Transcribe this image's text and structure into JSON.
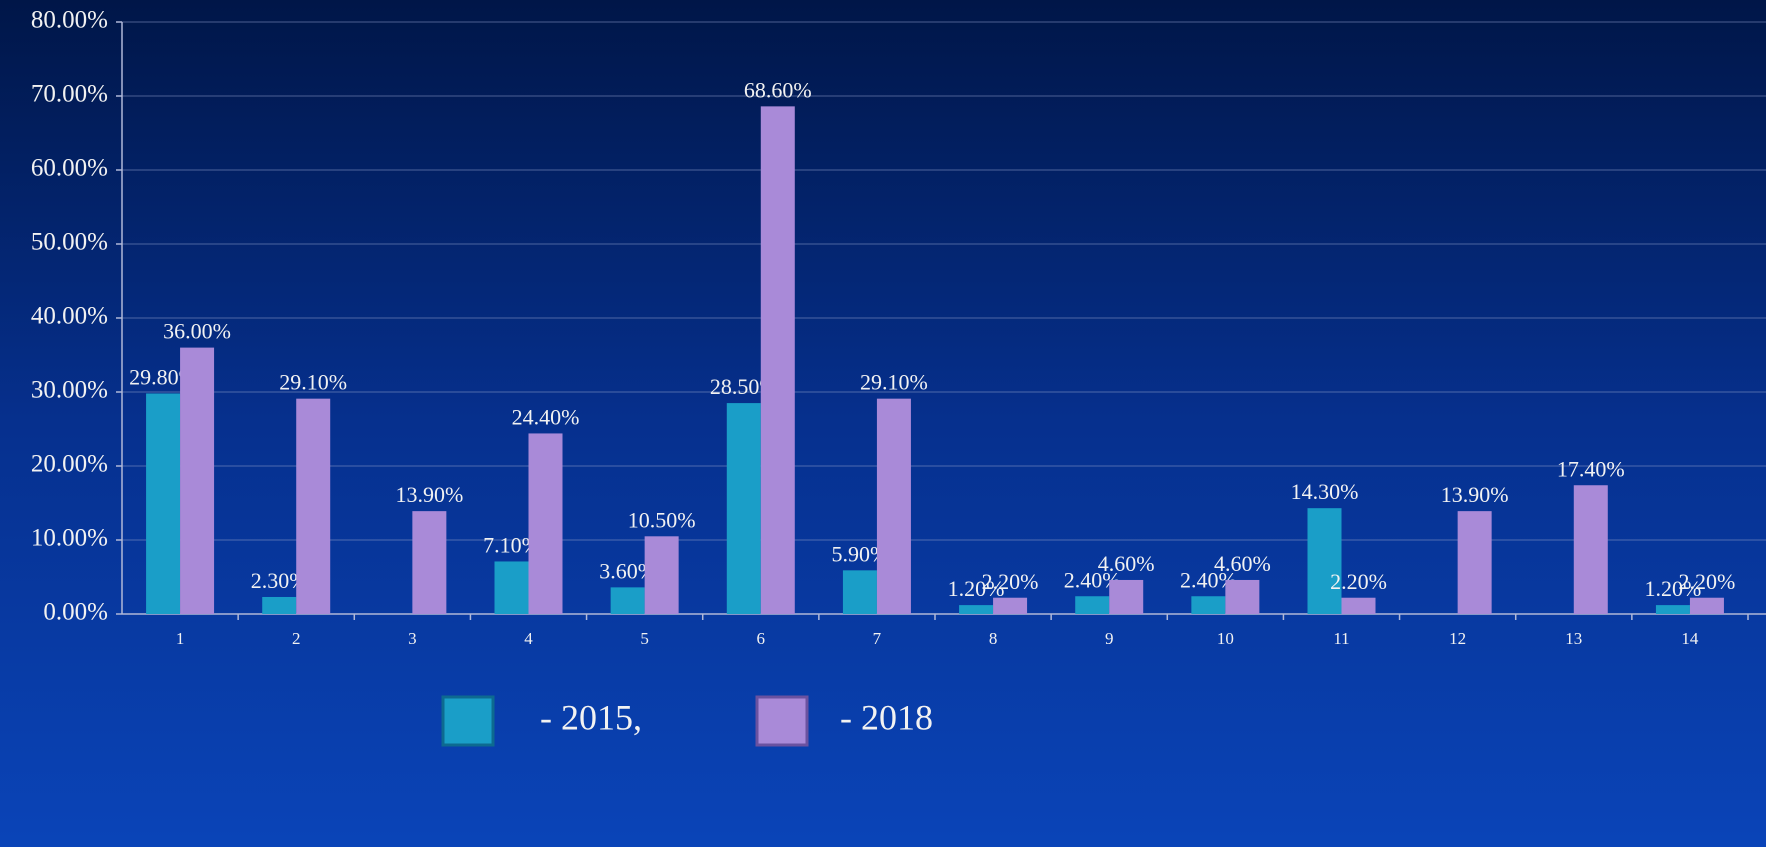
{
  "chart_data": {
    "type": "bar",
    "categories": [
      "1",
      "2",
      "3",
      "4",
      "5",
      "6",
      "7",
      "8",
      "9",
      "10",
      "11",
      "12",
      "13",
      "14"
    ],
    "series": [
      {
        "name": "- 2015,",
        "color": "#1a9ec8",
        "values": [
          29.8,
          2.3,
          null,
          7.1,
          3.6,
          28.5,
          5.9,
          1.2,
          2.4,
          2.4,
          14.3,
          null,
          null,
          1.2
        ],
        "value_labels": [
          "29.80%",
          "2.30%",
          null,
          "7.10%",
          "3.60%",
          "28.50%",
          "5.90%",
          "1.20%",
          "2.40%",
          "2.40%",
          "14.30%",
          null,
          null,
          "1.20%"
        ]
      },
      {
        "name": "- 2018",
        "color": "#a98ad8",
        "values": [
          36.0,
          29.1,
          13.9,
          24.4,
          10.5,
          68.6,
          29.1,
          2.2,
          4.6,
          4.6,
          2.2,
          13.9,
          17.4,
          2.2
        ],
        "value_labels": [
          "36.00%",
          "29.10%",
          "13.90%",
          "24.40%",
          "10.50%",
          "68.60%",
          "29.10%",
          "2.20%",
          "4.60%",
          "4.60%",
          "2.20%",
          "13.90%",
          "17.40%",
          "2.20%"
        ]
      }
    ],
    "ylim": [
      0,
      80
    ],
    "yticks": [
      {
        "value": 0,
        "label": "0.00%"
      },
      {
        "value": 10,
        "label": "10.00%"
      },
      {
        "value": 20,
        "label": "20.00%"
      },
      {
        "value": 30,
        "label": "30.00%"
      },
      {
        "value": 40,
        "label": "40.00%"
      },
      {
        "value": 50,
        "label": "50.00%"
      },
      {
        "value": 60,
        "label": "60.00%"
      },
      {
        "value": 70,
        "label": "70.00%"
      },
      {
        "value": 80,
        "label": "80.00%"
      }
    ],
    "grid": true,
    "legend": "bottom"
  }
}
